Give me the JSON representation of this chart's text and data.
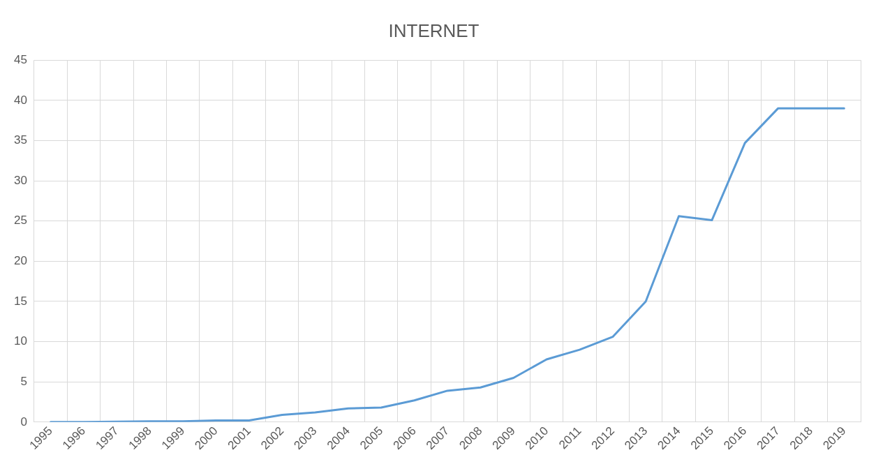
{
  "chart_data": {
    "type": "line",
    "title": "INTERNET",
    "categories": [
      "1995",
      "1996",
      "1997",
      "1998",
      "1999",
      "2000",
      "2001",
      "2002",
      "2003",
      "2004",
      "2005",
      "2006",
      "2007",
      "2008",
      "2009",
      "2010",
      "2011",
      "2012",
      "2013",
      "2014",
      "2015",
      "2016",
      "2017",
      "2018",
      "2019"
    ],
    "series": [
      {
        "color": "#5b9bd5",
        "values": [
          0,
          0,
          0.05,
          0.1,
          0.1,
          0.2,
          0.2,
          0.9,
          1.2,
          1.7,
          1.8,
          2.7,
          3.9,
          4.3,
          5.5,
          7.8,
          9.0,
          10.6,
          15.0,
          25.6,
          25.1,
          34.7,
          39,
          39,
          39
        ]
      }
    ],
    "ylim": [
      0,
      45
    ],
    "yticks": [
      0,
      5,
      10,
      15,
      20,
      25,
      30,
      35,
      40,
      45
    ],
    "grid": true,
    "legend": false,
    "marker": "none",
    "line_style": "solid"
  }
}
